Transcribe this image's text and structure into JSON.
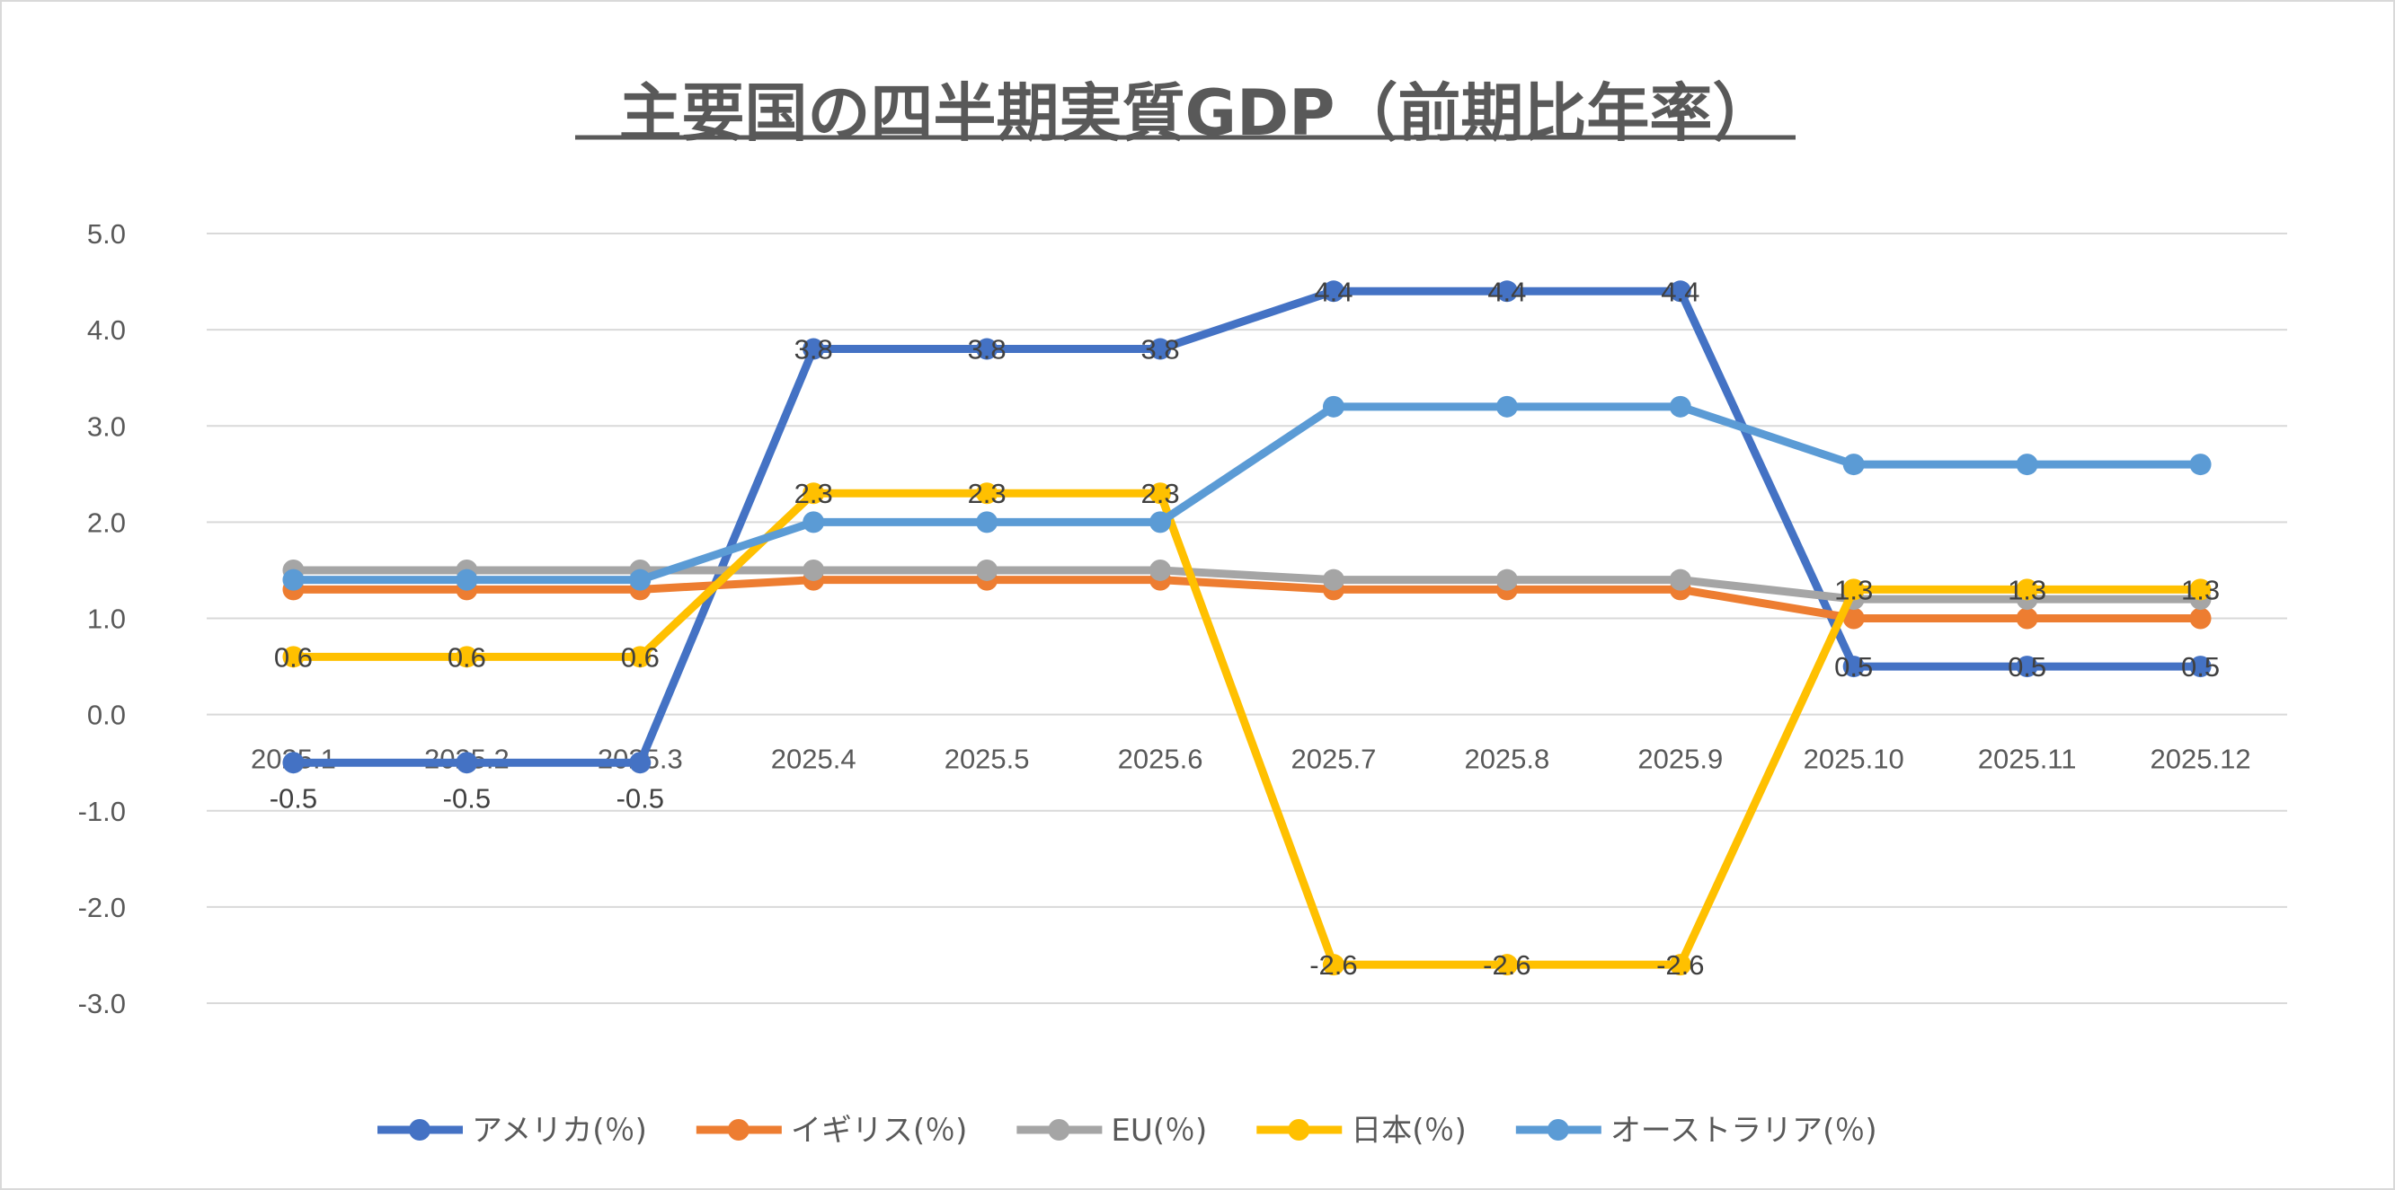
{
  "chart_data": {
    "type": "line",
    "title": "主要国の四半期実質GDP（前期比年率）",
    "categories": [
      "2025.1",
      "2025.2",
      "2025.3",
      "2025.4",
      "2025.5",
      "2025.6",
      "2025.7",
      "2025.8",
      "2025.9",
      "2025.10",
      "2025.11",
      "2025.12"
    ],
    "ylim": [
      -3.0,
      5.0
    ],
    "yticks": [
      "5.0",
      "4.0",
      "3.0",
      "2.0",
      "1.0",
      "0.0",
      "-1.0",
      "-2.0",
      "-3.0"
    ],
    "grid": true,
    "legend": "bottom",
    "series": [
      {
        "name": "アメリカ(％)",
        "color": "#4472c4",
        "values": [
          -0.5,
          -0.5,
          -0.5,
          3.8,
          3.8,
          3.8,
          4.4,
          4.4,
          4.4,
          0.5,
          0.5,
          0.5
        ],
        "data_labels": true
      },
      {
        "name": "イギリス(％)",
        "color": "#ed7d31",
        "values": [
          1.3,
          1.3,
          1.3,
          1.4,
          1.4,
          1.4,
          1.3,
          1.3,
          1.3,
          1.0,
          1.0,
          1.0
        ],
        "data_labels": false
      },
      {
        "name": "EU(％)",
        "color": "#a5a5a5",
        "values": [
          1.5,
          1.5,
          1.5,
          1.5,
          1.5,
          1.5,
          1.4,
          1.4,
          1.4,
          1.2,
          1.2,
          1.2
        ],
        "data_labels": false
      },
      {
        "name": "日本(％)",
        "color": "#ffc000",
        "values": [
          0.6,
          0.6,
          0.6,
          2.3,
          2.3,
          2.3,
          -2.6,
          -2.6,
          -2.6,
          1.3,
          1.3,
          1.3
        ],
        "data_labels": true
      },
      {
        "name": "オーストラリア(％)",
        "color": "#5b9bd5",
        "values": [
          1.4,
          1.4,
          1.4,
          2.0,
          2.0,
          2.0,
          3.2,
          3.2,
          3.2,
          2.6,
          2.6,
          2.6
        ],
        "data_labels": false
      }
    ]
  }
}
